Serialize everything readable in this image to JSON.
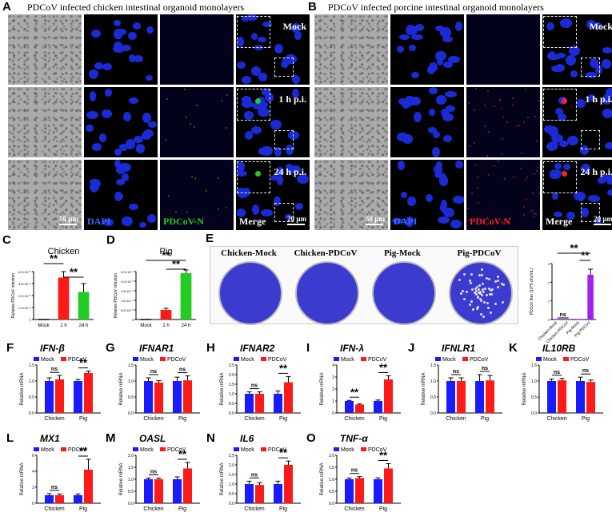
{
  "panels": {
    "A": {
      "letter": "A",
      "title": "PDCoV infected chicken intestinal organoid monolayers"
    },
    "B": {
      "letter": "B",
      "title": "PDCoV infected porcine intestinal organoid monolayers"
    }
  },
  "rows": [
    "Mock",
    "1 h p.i.",
    "24 h p.i."
  ],
  "channels": {
    "dapi": "DAPI",
    "pdcov": "PDCoV-N",
    "merge": "Merge"
  },
  "scale": "50 μm",
  "scale_merge": "20 μm",
  "colors": {
    "mock": "#1a1aff",
    "pdcov": "#ff1a1a",
    "green": "#22cc22",
    "purple": "#a020f0",
    "dish": "#3b3bd0"
  },
  "plaque": {
    "letter": "E",
    "labels": [
      "Chicken-Mock",
      "Chicken-PDCoV",
      "Pig-Mock",
      "Pig-PDCoV"
    ]
  },
  "chart_data": [
    {
      "id": "C",
      "type": "bar",
      "title": "Chicken",
      "ylabel": "Relative PDCoV infection",
      "categories": [
        "Mock",
        "1 h",
        "24 h"
      ],
      "values": [
        0,
        35,
        23
      ],
      "errors": [
        0,
        5,
        7
      ],
      "yticks": [
        "0",
        "1.0×10⁻⁸",
        "2.0×10⁻⁸",
        "3.0×10⁻⁸",
        "4.0×10⁻⁸"
      ],
      "colors": [
        "#000000",
        "#ff1a1a",
        "#22cc22"
      ],
      "sig": [
        "**",
        "**"
      ]
    },
    {
      "id": "D",
      "type": "bar",
      "title": "Pig",
      "ylabel": "Relative PDCoV infection",
      "categories": [
        "Mock",
        "1 h",
        "24 h"
      ],
      "values": [
        0,
        12,
        58
      ],
      "errors": [
        0,
        2,
        4
      ],
      "yticks": [
        "0",
        "5.0×10⁻⁵",
        "1.0×10⁻⁴",
        "1.5×10⁻⁴",
        "4.0×10⁻²",
        "5.0×10⁻²"
      ],
      "colors": [
        "#000000",
        "#ff1a1a",
        "#22cc22"
      ],
      "sig": [
        "**",
        "**"
      ]
    },
    {
      "id": "E",
      "type": "bar",
      "title": "",
      "ylabel": "PDCoV titer (10^5 pfu/mL)",
      "categories": [
        "Chicken-Mock",
        "Chicken-PDCoV",
        "Pig-Mock",
        "Pig-PDCoV"
      ],
      "values": [
        0,
        0,
        0,
        2.4
      ],
      "errors": [
        0,
        0,
        0,
        0.3
      ],
      "yticks": [
        "0",
        "1",
        "2",
        "3"
      ],
      "ylim": [
        0,
        3
      ],
      "colors": [
        "#a020f0",
        "#a020f0",
        "#a020f0",
        "#a020f0"
      ],
      "sig": [
        "ns",
        "**",
        "**"
      ]
    },
    {
      "id": "F",
      "gene": "IFN-β",
      "type": "bar",
      "ylabel": "Relative mRNA",
      "categories": [
        "Chicken",
        "Pig"
      ],
      "series": [
        {
          "name": "Mock",
          "values": [
            1.0,
            1.0
          ],
          "errors": [
            0.1,
            0.05
          ]
        },
        {
          "name": "PDCoV",
          "values": [
            1.05,
            1.25
          ],
          "errors": [
            0.12,
            0.06
          ]
        }
      ],
      "yticks": [
        "0.0",
        "0.5",
        "1.0",
        "1.5"
      ],
      "ylim": [
        0,
        1.5
      ],
      "sig": [
        "ns",
        "**"
      ]
    },
    {
      "id": "G",
      "gene": "IFNAR1",
      "type": "bar",
      "ylabel": "Relative mRNA",
      "categories": [
        "Chicken",
        "Pig"
      ],
      "series": [
        {
          "name": "Mock",
          "values": [
            1.0,
            1.0
          ],
          "errors": [
            0.1,
            0.12
          ]
        },
        {
          "name": "PDCoV",
          "values": [
            0.95,
            1.02
          ],
          "errors": [
            0.06,
            0.14
          ]
        }
      ],
      "yticks": [
        "0.0",
        "0.5",
        "1.0",
        "1.5"
      ],
      "ylim": [
        0,
        1.5
      ],
      "sig": [
        "ns",
        "ns"
      ]
    },
    {
      "id": "H",
      "gene": "IFNAR2",
      "type": "bar",
      "ylabel": "Relative mRNA",
      "categories": [
        "Chicken",
        "Pig"
      ],
      "series": [
        {
          "name": "Mock",
          "values": [
            1.0,
            1.0
          ],
          "errors": [
            0.1,
            0.15
          ]
        },
        {
          "name": "PDCoV",
          "values": [
            1.0,
            1.6
          ],
          "errors": [
            0.1,
            0.3
          ]
        }
      ],
      "yticks": [
        "0.0",
        "0.5",
        "1.0",
        "1.5",
        "2.0",
        "2.5"
      ],
      "ylim": [
        0,
        2.5
      ],
      "sig": [
        "ns",
        "**"
      ]
    },
    {
      "id": "I",
      "gene": "IFN-λ",
      "type": "bar",
      "ylabel": "Relative mRNA",
      "categories": [
        "Chicken",
        "Pig"
      ],
      "series": [
        {
          "name": "Mock",
          "values": [
            1.0,
            1.0
          ],
          "errors": [
            0.05,
            0.08
          ]
        },
        {
          "name": "PDCoV",
          "values": [
            0.7,
            2.8
          ],
          "errors": [
            0.05,
            0.3
          ]
        }
      ],
      "yticks": [
        "0",
        "1",
        "2",
        "3",
        "4"
      ],
      "ylim": [
        0,
        4
      ],
      "sig": [
        "**",
        "**"
      ]
    },
    {
      "id": "J",
      "gene": "IFNLR1",
      "type": "bar",
      "ylabel": "Relative mRNA",
      "categories": [
        "Chicken",
        "Pig"
      ],
      "series": [
        {
          "name": "Mock",
          "values": [
            1.0,
            1.0
          ],
          "errors": [
            0.1,
            0.2
          ]
        },
        {
          "name": "PDCoV",
          "values": [
            1.0,
            1.02
          ],
          "errors": [
            0.1,
            0.15
          ]
        }
      ],
      "yticks": [
        "0.0",
        "0.5",
        "1.0",
        "1.5"
      ],
      "ylim": [
        0,
        1.5
      ],
      "sig": [
        "ns",
        "ns"
      ]
    },
    {
      "id": "K",
      "gene": "IL10RB",
      "type": "bar",
      "ylabel": "Relative mRNA",
      "categories": [
        "Chicken",
        "Pig"
      ],
      "series": [
        {
          "name": "Mock",
          "values": [
            1.0,
            1.0
          ],
          "errors": [
            0.06,
            0.12
          ]
        },
        {
          "name": "PDCoV",
          "values": [
            1.02,
            0.97
          ],
          "errors": [
            0.06,
            0.06
          ]
        }
      ],
      "yticks": [
        "0.0",
        "0.5",
        "1.0",
        "1.5"
      ],
      "ylim": [
        0,
        1.5
      ],
      "sig": [
        "ns",
        "ns"
      ]
    },
    {
      "id": "L",
      "gene": "MX1",
      "type": "bar",
      "ylabel": "Relative mRNA",
      "categories": [
        "Chicken",
        "Pig"
      ],
      "series": [
        {
          "name": "Mock",
          "values": [
            1.0,
            1.0
          ],
          "errors": [
            0.2,
            0.15
          ]
        },
        {
          "name": "PDCoV",
          "values": [
            1.0,
            4.2
          ],
          "errors": [
            0.15,
            1.3
          ]
        }
      ],
      "yticks": [
        "0",
        "2",
        "4",
        "6"
      ],
      "ylim": [
        0,
        6
      ],
      "sig": [
        "ns",
        "**"
      ]
    },
    {
      "id": "M",
      "gene": "OASL",
      "type": "bar",
      "ylabel": "Relative mRNA",
      "categories": [
        "Chicken",
        "Pig"
      ],
      "series": [
        {
          "name": "Mock",
          "values": [
            1.0,
            1.0
          ],
          "errors": [
            0.05,
            0.1
          ]
        },
        {
          "name": "PDCoV",
          "values": [
            1.0,
            1.45
          ],
          "errors": [
            0.05,
            0.25
          ]
        }
      ],
      "yticks": [
        "0.0",
        "0.5",
        "1.0",
        "1.5",
        "2.0"
      ],
      "ylim": [
        0,
        2
      ],
      "sig": [
        "ns",
        "**"
      ]
    },
    {
      "id": "N",
      "gene": "IL6",
      "type": "bar",
      "ylabel": "Relative mRNA",
      "categories": [
        "Chicken",
        "Pig"
      ],
      "series": [
        {
          "name": "Mock",
          "values": [
            1.0,
            1.0
          ],
          "errors": [
            0.15,
            0.15
          ]
        },
        {
          "name": "PDCoV",
          "values": [
            0.95,
            2.0
          ],
          "errors": [
            0.12,
            0.2
          ]
        }
      ],
      "yticks": [
        "0.0",
        "0.5",
        "1.0",
        "1.5",
        "2.0",
        "2.5"
      ],
      "ylim": [
        0,
        2.5
      ],
      "sig": [
        "ns",
        "**"
      ]
    },
    {
      "id": "O",
      "gene": "TNF-α",
      "type": "bar",
      "ylabel": "Relative mRNA",
      "categories": [
        "Chicken",
        "Pig"
      ],
      "series": [
        {
          "name": "Mock",
          "values": [
            1.0,
            1.0
          ],
          "errors": [
            0.05,
            0.06
          ]
        },
        {
          "name": "PDCoV",
          "values": [
            1.05,
            1.45
          ],
          "errors": [
            0.06,
            0.2
          ]
        }
      ],
      "yticks": [
        "0.0",
        "0.5",
        "1.0",
        "1.5",
        "2.0"
      ],
      "ylim": [
        0,
        2
      ],
      "sig": [
        "ns",
        "**"
      ]
    }
  ]
}
